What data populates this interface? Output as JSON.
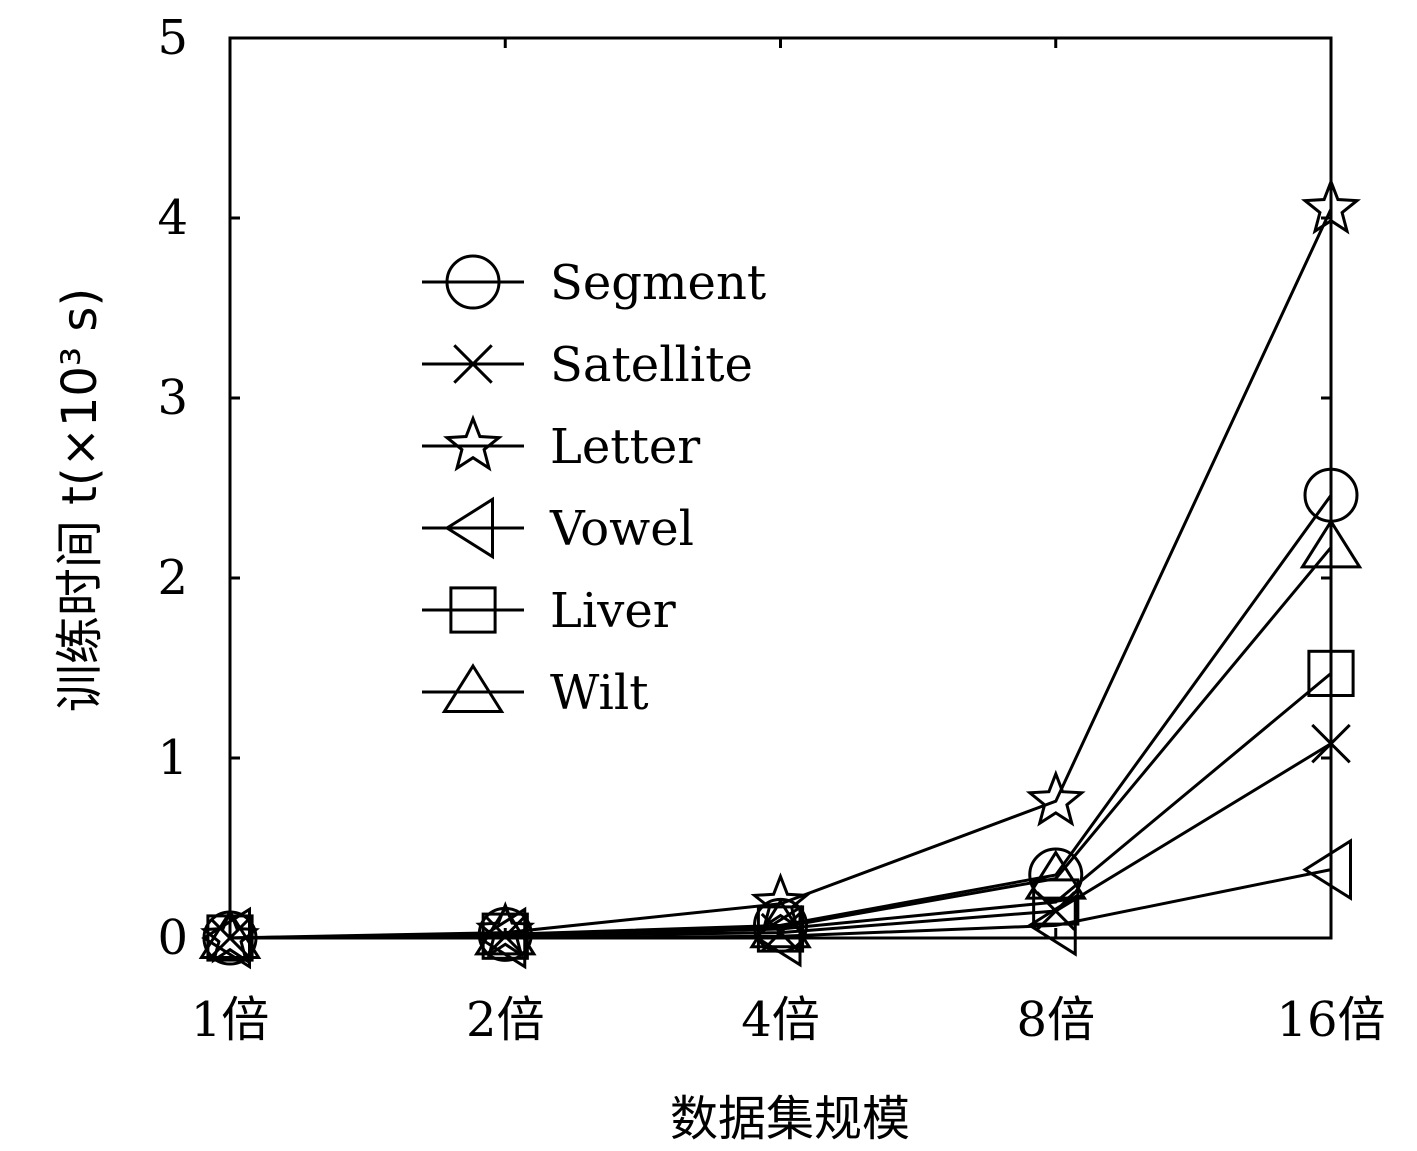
{
  "chart_data": {
    "type": "line",
    "title": "",
    "xlabel": "数据集规模",
    "ylabel": "训练时间 t(×10³ s)",
    "categories": [
      "1倍",
      "2倍",
      "4倍",
      "8倍",
      "16倍"
    ],
    "ylim": [
      0,
      5
    ],
    "yticks": [
      0,
      1,
      2,
      3,
      4,
      5
    ],
    "grid": false,
    "legend_position": "upper-left",
    "series": [
      {
        "name": "Segment",
        "marker": "circle",
        "values": [
          0.0,
          0.02,
          0.07,
          0.35,
          2.46
        ]
      },
      {
        "name": "Satellite",
        "marker": "x",
        "values": [
          0.0,
          0.01,
          0.03,
          0.15,
          1.08
        ]
      },
      {
        "name": "Letter",
        "marker": "star",
        "values": [
          0.0,
          0.03,
          0.19,
          0.76,
          4.05
        ]
      },
      {
        "name": "Vowel",
        "marker": "triangle-left",
        "values": [
          0.0,
          0.0,
          0.01,
          0.07,
          0.38
        ]
      },
      {
        "name": "Liver",
        "marker": "square",
        "values": [
          0.0,
          0.01,
          0.05,
          0.2,
          1.47
        ]
      },
      {
        "name": "Wilt",
        "marker": "triangle-up",
        "values": [
          0.0,
          0.02,
          0.06,
          0.33,
          2.17
        ]
      }
    ]
  }
}
